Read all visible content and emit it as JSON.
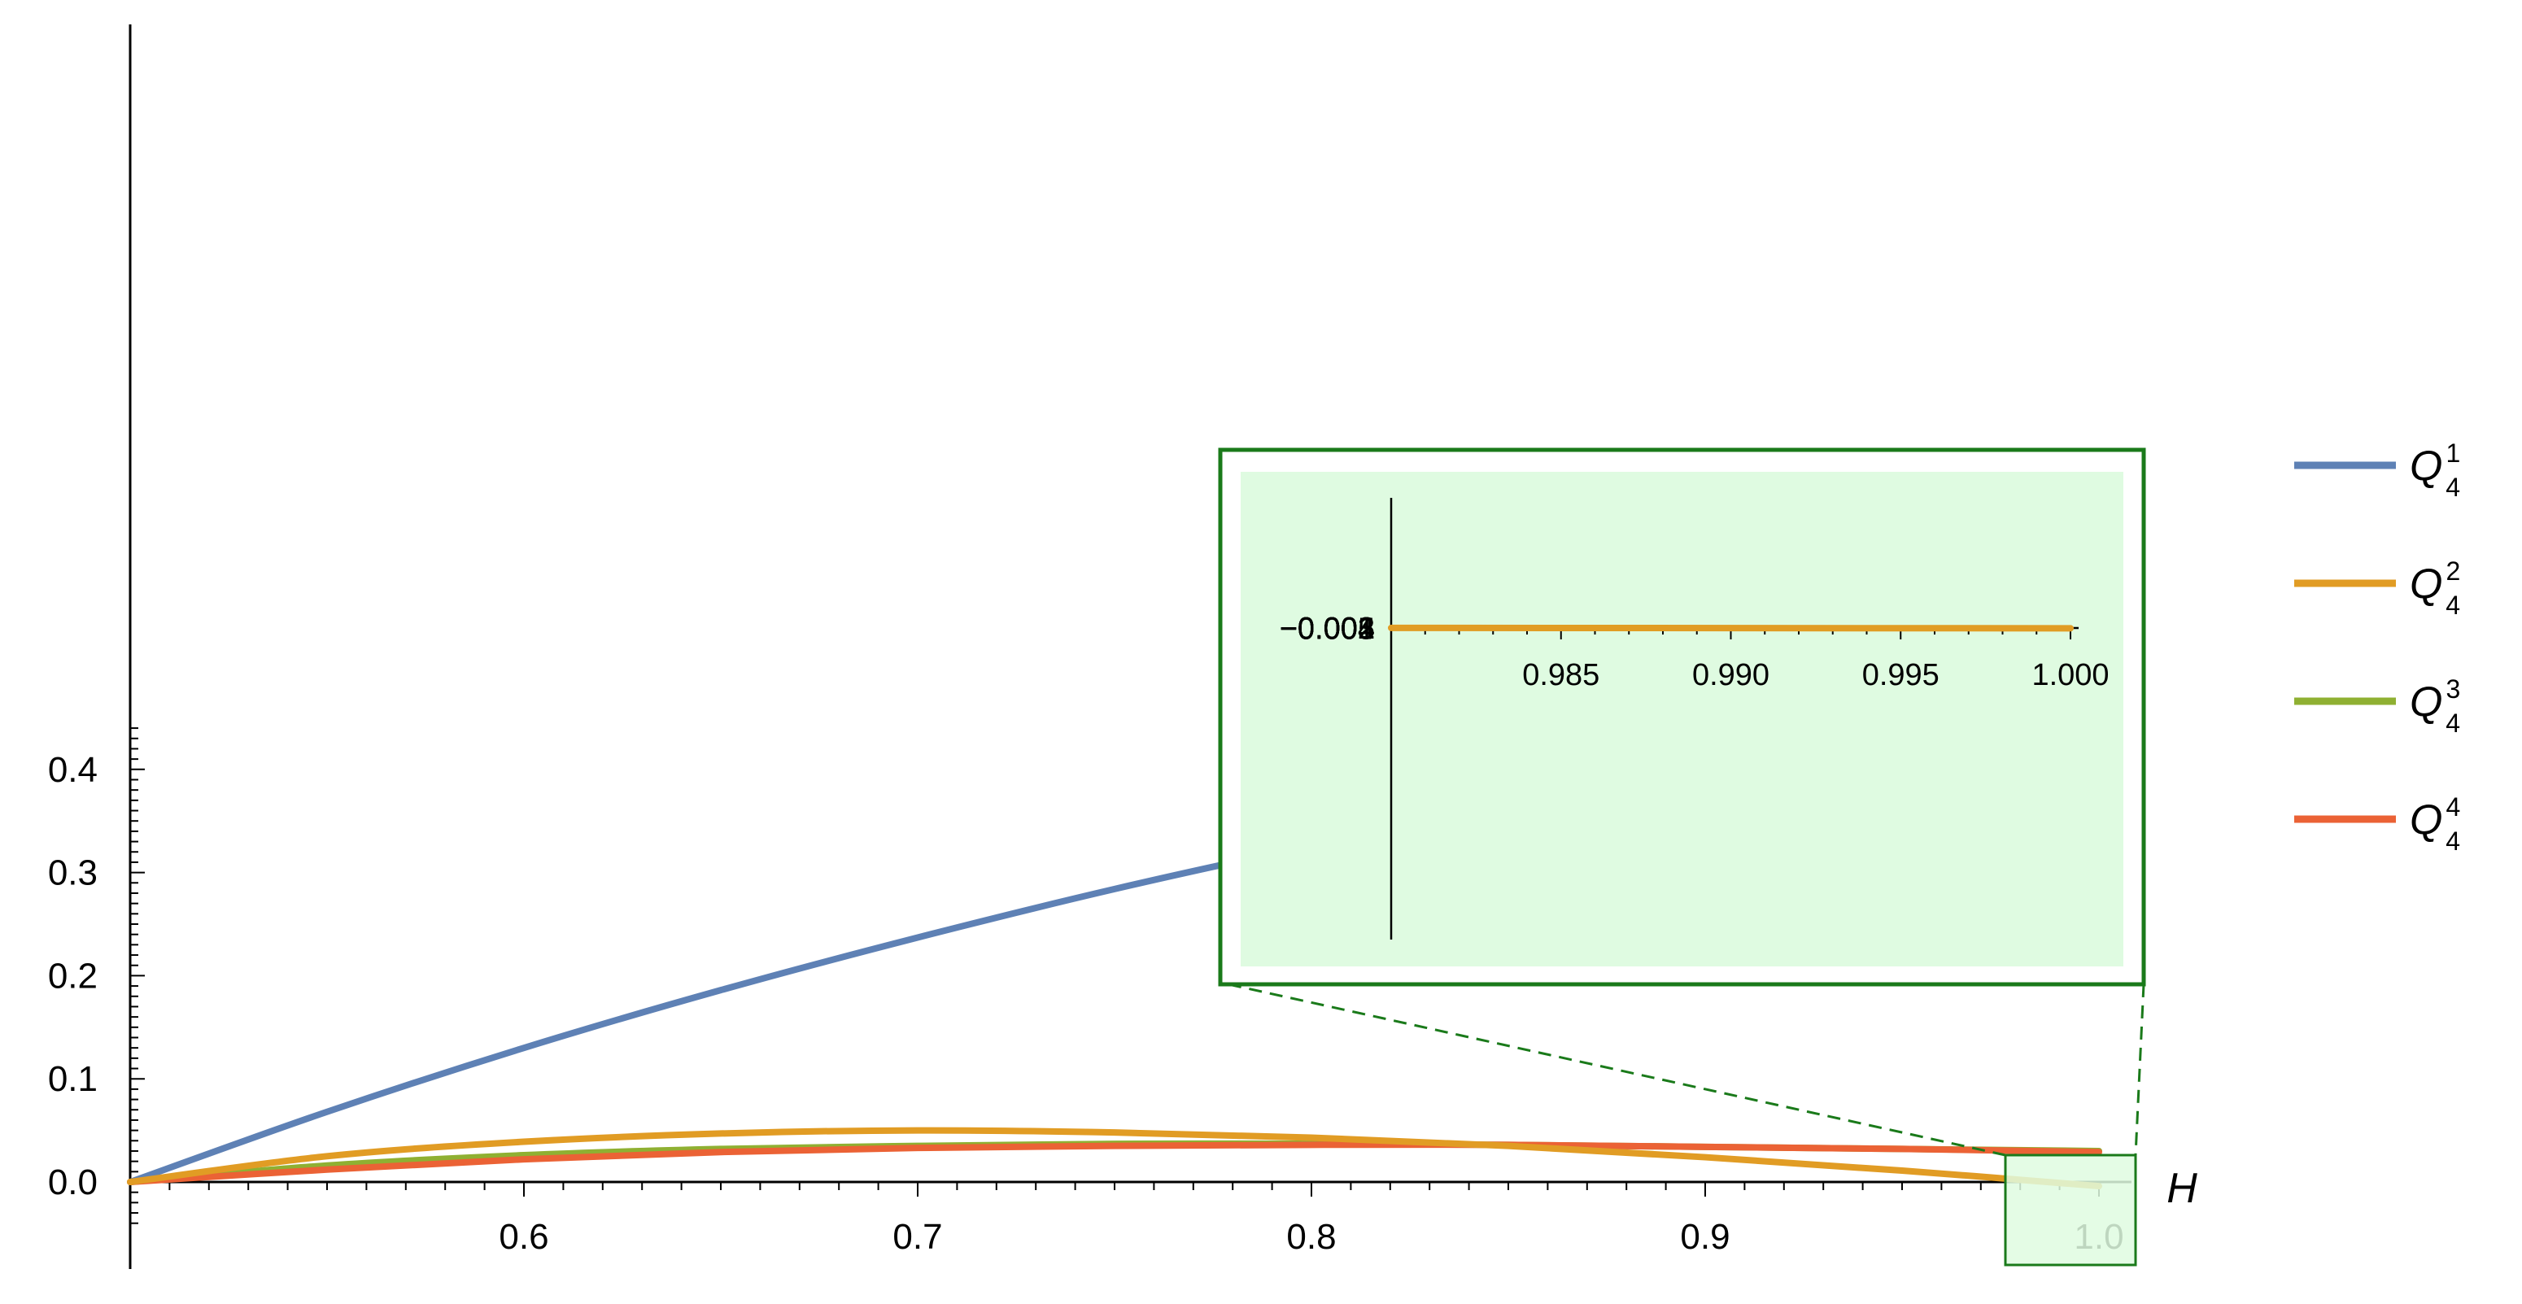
{
  "chart_data": {
    "type": "line",
    "xlabel": "H",
    "ylabel": "",
    "xlim": [
      0.5,
      1.0
    ],
    "ylim": [
      -0.05,
      0.45
    ],
    "x_ticks": [
      "0.6",
      "0.7",
      "0.8",
      "0.9",
      "1.0"
    ],
    "y_ticks": [
      "0.0",
      "0.1",
      "0.2",
      "0.3",
      "0.4"
    ],
    "legend_position": "right",
    "colors": {
      "q1": "#5e81b5",
      "q2": "#e19c24",
      "q3": "#8fb032",
      "q4": "#eb6235",
      "inset_bg": "#dffbe1",
      "inset_border": "#1a7a1a"
    },
    "series": [
      {
        "name": "Q41",
        "legend": {
          "base": "Q",
          "sub": "4",
          "sup": "1"
        },
        "color": "#5e81b5",
        "x": [
          0.5,
          0.55,
          0.6,
          0.65,
          0.7,
          0.75,
          0.8,
          0.85,
          0.9,
          0.95,
          1.0
        ],
        "y": [
          0.0,
          0.068,
          0.13,
          0.186,
          0.237,
          0.284,
          0.326,
          0.364,
          0.398,
          0.43,
          0.446
        ]
      },
      {
        "name": "Q42",
        "legend": {
          "base": "Q",
          "sub": "4",
          "sup": "2"
        },
        "color": "#e19c24",
        "x": [
          0.5,
          0.55,
          0.6,
          0.65,
          0.7,
          0.75,
          0.8,
          0.85,
          0.9,
          0.95,
          1.0
        ],
        "y": [
          0.0,
          0.025,
          0.039,
          0.047,
          0.05,
          0.048,
          0.043,
          0.035,
          0.024,
          0.011,
          -0.004
        ]
      },
      {
        "name": "Q43",
        "legend": {
          "base": "Q",
          "sub": "4",
          "sup": "3"
        },
        "color": "#8fb032",
        "x": [
          0.5,
          0.55,
          0.6,
          0.65,
          0.7,
          0.75,
          0.8,
          0.85,
          0.9,
          0.95,
          1.0
        ],
        "y": [
          0.0,
          0.016,
          0.026,
          0.032,
          0.035,
          0.037,
          0.037,
          0.036,
          0.034,
          0.032,
          0.03
        ]
      },
      {
        "name": "Q44",
        "legend": {
          "base": "Q",
          "sub": "4",
          "sup": "4"
        },
        "color": "#eb6235",
        "x": [
          0.5,
          0.55,
          0.6,
          0.65,
          0.7,
          0.75,
          0.8,
          0.85,
          0.9,
          0.95,
          1.0
        ],
        "y": [
          0.0,
          0.012,
          0.022,
          0.029,
          0.033,
          0.035,
          0.036,
          0.036,
          0.034,
          0.032,
          0.029
        ]
      }
    ],
    "inset": {
      "type": "line",
      "xlim": [
        0.98,
        1.0
      ],
      "ylim": [
        -0.005,
        0.002
      ],
      "x_ticks": [
        "0.985",
        "0.990",
        "0.995",
        "1.000"
      ],
      "y_ticks": [
        "0.002",
        "0.001",
        "-0.001",
        "-0.002",
        "-0.003",
        "-0.004",
        "-0.005"
      ],
      "series": [
        {
          "name": "Q42",
          "color": "#e19c24",
          "x": [
            0.98,
            1.0
          ],
          "y": [
            0.0015,
            -0.0045
          ]
        }
      ]
    }
  }
}
